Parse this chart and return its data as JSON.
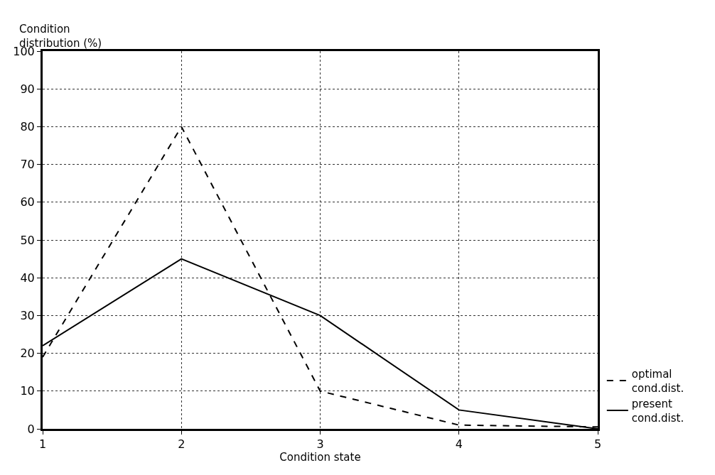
{
  "chart_data": {
    "type": "line",
    "xlabel": "Condition state",
    "ylabel": "Condition distribution (%)",
    "x": [
      1,
      2,
      3,
      4,
      5
    ],
    "series": [
      {
        "name": "optimal cond.dist.",
        "color": "#000000",
        "line_style": "dashed",
        "values": [
          19,
          80,
          10,
          1,
          0.5
        ]
      },
      {
        "name": "present cond.dist.",
        "color": "#000000",
        "line_style": "solid",
        "values": [
          22,
          45,
          30,
          5,
          0
        ]
      }
    ],
    "xlim": [
      1,
      5
    ],
    "xticks": [
      1,
      2,
      3,
      4,
      5
    ],
    "ylim": [
      0,
      100
    ],
    "yticks": [
      0,
      10,
      20,
      30,
      40,
      50,
      60,
      70,
      80,
      90,
      100
    ],
    "grid": true,
    "legend": "bottom right",
    "marker": "none"
  }
}
